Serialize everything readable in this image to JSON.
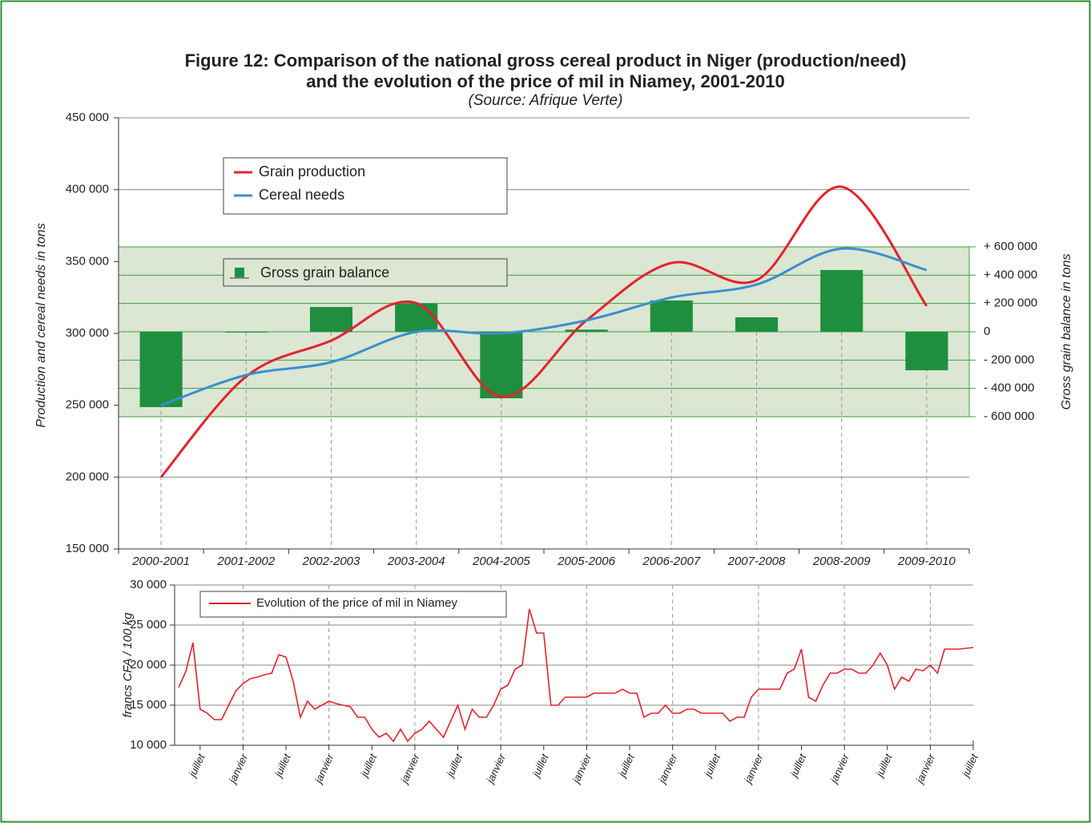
{
  "figure": {
    "title": [
      "Figure 12: Comparison of the national gross cereal product in Niger (production/need)",
      "and the evolution of the price of mil in Niamey, 2001-2010"
    ],
    "source": "(Source: Afrique Verte)"
  },
  "chart_data": [
    {
      "type": "combo",
      "categories": [
        "2000-2001",
        "2001-2002",
        "2002-2003",
        "2003-2004",
        "2004-2005",
        "2005-2006",
        "2006-2007",
        "2007-2008",
        "2008-2009",
        "2009-2010"
      ],
      "series": [
        {
          "name": "Grain production",
          "type": "line",
          "color": "#e3232c",
          "values": [
            200000,
            270000,
            295000,
            321000,
            256000,
            309000,
            349000,
            337000,
            402000,
            319000
          ]
        },
        {
          "name": "Cereal needs",
          "type": "line",
          "color": "#3a8fcf",
          "values": [
            250000,
            271000,
            280000,
            301000,
            300000,
            309000,
            325000,
            334000,
            359000,
            344000
          ]
        },
        {
          "name": "Gross grain balance",
          "type": "bar",
          "axis": "y2",
          "color": "#1f8f3f",
          "values": [
            -532000,
            -5000,
            175000,
            200000,
            -470000,
            15000,
            221000,
            102000,
            436000,
            -272000
          ]
        }
      ],
      "ylabel": "Production and cereal needs in tons",
      "y2label": "Gross grain balance in tons",
      "ylim": [
        150000,
        450000
      ],
      "yticks": [
        {
          "value": 150000,
          "label": "150 000"
        },
        {
          "value": 200000,
          "label": "200 000"
        },
        {
          "value": 250000,
          "label": "250 000"
        },
        {
          "value": 300000,
          "label": "300 000"
        },
        {
          "value": 350000,
          "label": "350 000"
        },
        {
          "value": 400000,
          "label": "400 000"
        },
        {
          "value": 450000,
          "label": "450 000"
        }
      ],
      "y2lim": [
        -600000,
        600000
      ],
      "y2ticks": [
        {
          "value": -600000,
          "label": "- 600 000"
        },
        {
          "value": -400000,
          "label": "- 400 000"
        },
        {
          "value": -200000,
          "label": "- 200 000"
        },
        0,
        {
          "value": 200000,
          "label": "+ 200 000"
        },
        {
          "value": 400000,
          "label": "+ 400 000"
        },
        {
          "value": 600000,
          "label": "+ 600 000"
        }
      ],
      "grid": true,
      "legend": "upper left"
    },
    {
      "type": "line",
      "categories": [
        null,
        null,
        null,
        "juillet",
        null,
        null,
        null,
        null,
        null,
        "janvier",
        null,
        null,
        null,
        null,
        null,
        "juillet",
        null,
        null,
        null,
        null,
        null,
        "janvier",
        null,
        null,
        null,
        null,
        null,
        "juillet",
        null,
        null,
        null,
        null,
        null,
        "janvier",
        null,
        null,
        null,
        null,
        null,
        "juillet",
        null,
        null,
        null,
        null,
        null,
        "janvier",
        null,
        null,
        null,
        null,
        null,
        "juillet",
        null,
        null,
        null,
        null,
        null,
        "janvier",
        null,
        null,
        null,
        null,
        null,
        "juillet",
        null,
        null,
        null,
        null,
        null,
        "janvier",
        null,
        null,
        null,
        null,
        null,
        "juillet",
        null,
        null,
        null,
        null,
        null,
        "janvier",
        null,
        null,
        null,
        null,
        null,
        "juillet",
        null,
        null,
        null,
        null,
        null,
        "janvier",
        null,
        null,
        null,
        null,
        null,
        "juillet",
        null,
        null,
        null,
        null,
        null,
        "janvier",
        null,
        null,
        null,
        null,
        null,
        "juillet"
      ],
      "series": [
        {
          "name": "Evolution of the price of mil in Niamey",
          "color": "#e3232c",
          "values": [
            17200,
            19200,
            22800,
            14500,
            14000,
            13200,
            13200,
            15000,
            16800,
            17700,
            18300,
            18500,
            18800,
            19000,
            21300,
            21000,
            18000,
            13500,
            15500,
            14500,
            15000,
            15500,
            15200,
            15000,
            14800,
            13500,
            13500,
            12000,
            11000,
            11500,
            10500,
            12000,
            10500,
            11500,
            12000,
            13000,
            12000,
            11000,
            13000,
            15000,
            12000,
            14500,
            13500,
            13500,
            15000,
            17000,
            17500,
            19500,
            20000,
            27000,
            24000,
            24000,
            15000,
            15000,
            16000,
            16000,
            16000,
            16000,
            16500,
            16500,
            16500,
            16500,
            17000,
            16500,
            16500,
            13500,
            14000,
            14000,
            15000,
            14000,
            14000,
            14500,
            14500,
            14000,
            14000,
            14000,
            14000,
            13000,
            13500,
            13500,
            16000,
            17000,
            17000,
            17000,
            17000,
            19000,
            19500,
            22000,
            16000,
            15500,
            17500,
            19000,
            19000,
            19500,
            19500,
            19000,
            19000,
            20000,
            21500,
            20000,
            17000,
            18500,
            18000,
            19500,
            19300,
            20000,
            19000,
            22000,
            22000,
            22000,
            22100,
            22200
          ]
        }
      ],
      "ylabel": "francs CFA / 100 kg",
      "ylim": [
        10000,
        30000
      ],
      "yticks": [
        {
          "value": 10000,
          "label": "10 000"
        },
        {
          "value": 15000,
          "label": "15 000"
        },
        {
          "value": 20000,
          "label": "20 000"
        },
        {
          "value": 25000,
          "label": "25 000"
        },
        {
          "value": 30000,
          "label": "30 000"
        }
      ],
      "grid": true,
      "legend": "upper left"
    }
  ]
}
